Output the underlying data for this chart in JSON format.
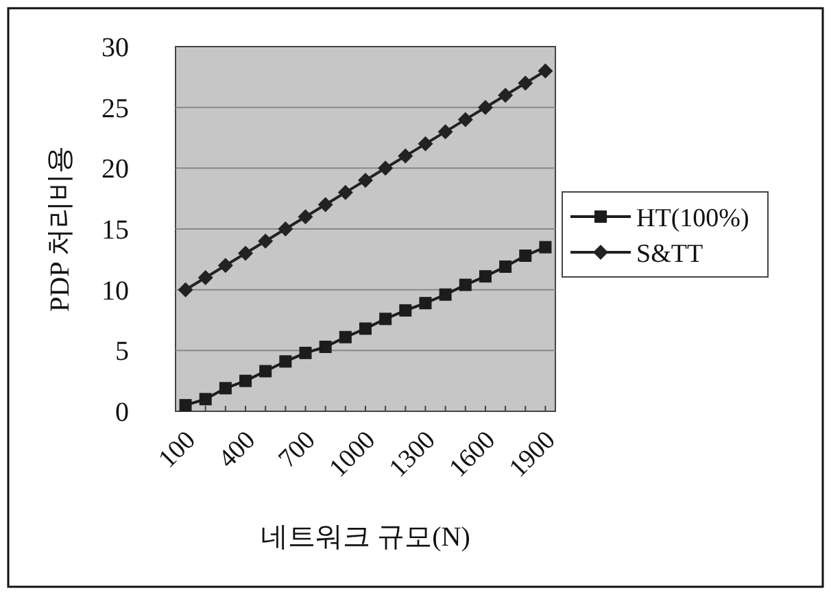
{
  "chart_data": {
    "type": "line",
    "xlabel": "네트워크 규모(N)",
    "ylabel": "PDP 처리비용",
    "categories": [
      "100",
      null,
      null,
      "400",
      null,
      null,
      "700",
      null,
      null,
      "1000",
      null,
      null,
      "1300",
      null,
      null,
      "1600",
      null,
      null,
      "1900"
    ],
    "ylim": [
      0,
      30
    ],
    "yticks": [
      0,
      5,
      10,
      15,
      20,
      25,
      30
    ],
    "grid": "y",
    "legend": "right",
    "line_style": "solid",
    "series": [
      {
        "name": "HT(100%)",
        "color": "#1c1c1c",
        "marker": "square",
        "values": [
          0.5,
          1.0,
          1.9,
          2.5,
          3.3,
          4.1,
          4.8,
          5.3,
          6.1,
          6.8,
          7.6,
          8.3,
          8.9,
          9.6,
          10.4,
          11.1,
          11.9,
          12.8,
          13.5
        ]
      },
      {
        "name": "S&TT",
        "color": "#222222",
        "marker": "diamond",
        "values": [
          10,
          11,
          12,
          13,
          14,
          15,
          16,
          17,
          18,
          19,
          20,
          21,
          22,
          23,
          24,
          25,
          26,
          27,
          28
        ]
      }
    ]
  }
}
